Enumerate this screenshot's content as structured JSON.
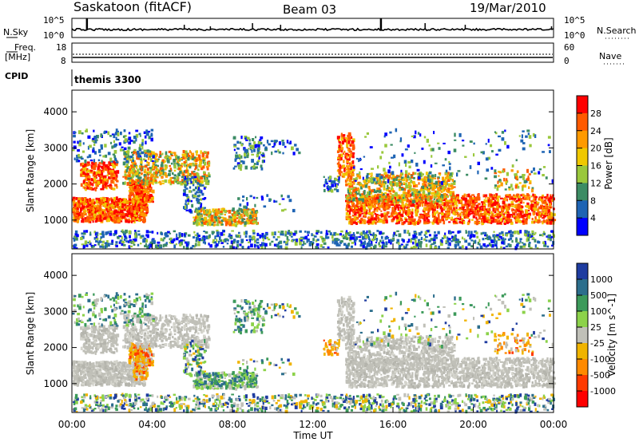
{
  "header": {
    "title": "Saskatoon (fitACF)",
    "beam": "Beam 03",
    "date": "19/Mar/2010"
  },
  "status_panels": {
    "noise": {
      "left_label": "N.Sky",
      "right_label": "N.Search",
      "left_ticks": [
        "10^5",
        "10^0"
      ],
      "right_ticks": [
        "10^5",
        "10^0"
      ]
    },
    "freq": {
      "left_label_1": "Freq.",
      "left_label_2": "[MHz]",
      "right_label": "Nave",
      "left_ticks": [
        "18",
        "8"
      ],
      "right_ticks": [
        "60",
        "0"
      ]
    },
    "cpid": {
      "label": "CPID",
      "program": "themis 3300"
    }
  },
  "chart_data": [
    {
      "type": "heatmap",
      "title": "",
      "ylabel": "Slant Range [km]",
      "xlabel": "Time UT",
      "x_ticks": [
        "00:00",
        "04:00",
        "08:00",
        "12:00",
        "16:00",
        "20:00",
        "00:00"
      ],
      "x_range_hours": [
        0,
        24
      ],
      "y_ticks": [
        1000,
        2000,
        3000,
        4000
      ],
      "ylim": [
        200,
        4600
      ],
      "colorbar": {
        "label": "Power [dB]",
        "ticks": [
          "28",
          "24",
          "20",
          "16",
          "12",
          "8",
          "4"
        ],
        "colors": [
          "#ff0000",
          "#ff5a00",
          "#ff9a00",
          "#f0c800",
          "#9ac83c",
          "#3c8c64",
          "#1e64b4",
          "#0000ff"
        ]
      },
      "regions_description_hours_km": [
        {
          "t": [
            0.0,
            3.6
          ],
          "r": [
            900,
            1600
          ],
          "level": "high"
        },
        {
          "t": [
            0.5,
            2.2
          ],
          "r": [
            1800,
            2600
          ],
          "level": "high"
        },
        {
          "t": [
            2.5,
            6.8
          ],
          "r": [
            2000,
            2900
          ],
          "level": "medium"
        },
        {
          "t": [
            6.2,
            9.2
          ],
          "r": [
            900,
            1300
          ],
          "level": "medium"
        },
        {
          "t": [
            13.3,
            24.0
          ],
          "r": [
            900,
            2300
          ],
          "level": "high"
        }
      ]
    },
    {
      "type": "heatmap",
      "title": "",
      "ylabel": "Slant Range [km]",
      "xlabel": "Time UT",
      "x_ticks": [
        "00:00",
        "04:00",
        "08:00",
        "12:00",
        "16:00",
        "20:00",
        "00:00"
      ],
      "x_range_hours": [
        0,
        24
      ],
      "y_ticks": [
        1000,
        2000,
        3000,
        4000
      ],
      "ylim": [
        200,
        4600
      ],
      "colorbar": {
        "label": "Velocity [m s^-1]",
        "ticks": [
          "1000",
          "500",
          "100",
          "25",
          "-25",
          "-100",
          "-500",
          "-1000"
        ],
        "colors": [
          "#1e3ca0",
          "#2c6e8c",
          "#3c9a5a",
          "#8cd24a",
          "#c0c0b8",
          "#f0b400",
          "#ff8a00",
          "#ff3a00",
          "#ff0000"
        ]
      }
    }
  ],
  "axis": {
    "xlabel": "Time UT"
  }
}
